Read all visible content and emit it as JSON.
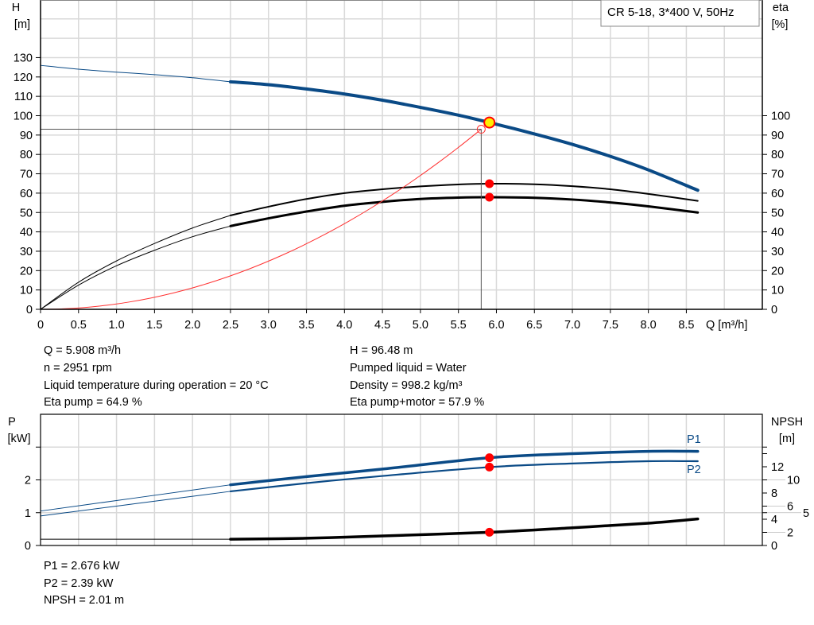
{
  "title_box": "CR 5-18, 3*400 V, 50Hz",
  "colors": {
    "head": "#0a4a86",
    "eta": "#000000",
    "system": "#ff3030",
    "duty_point": "#ffee00",
    "marker": "#ff0000",
    "grid": "#d9d9d9"
  },
  "chart_data": [
    {
      "type": "line",
      "xlabel": "Q [m³/h]",
      "ylabel_left": [
        "H",
        "[m]"
      ],
      "ylabel_right": [
        "eta",
        "[%]"
      ],
      "xlim": [
        0,
        9.5
      ],
      "ylim_left": [
        0,
        160
      ],
      "ylim_right": [
        0,
        160
      ],
      "x_ticks": [
        "0",
        "0.5",
        "1.0",
        "1.5",
        "2.0",
        "2.5",
        "3.0",
        "3.5",
        "4.0",
        "4.5",
        "5.0",
        "5.5",
        "6.0",
        "6.5",
        "7.0",
        "7.5",
        "8.0",
        "8.5"
      ],
      "y_ticks_left": [
        0,
        10,
        20,
        30,
        40,
        50,
        60,
        70,
        80,
        90,
        100,
        110,
        120,
        130
      ],
      "y_ticks_right": [
        0,
        10,
        20,
        30,
        40,
        50,
        60,
        70,
        80,
        90,
        100
      ],
      "grid": true,
      "series": [
        {
          "key": "head",
          "axis": "left",
          "thin_until": 2.5,
          "x": [
            0,
            0.5,
            1,
            1.5,
            2,
            2.5,
            3,
            3.5,
            4,
            4.5,
            5,
            5.5,
            5.908,
            6.5,
            7,
            7.5,
            8,
            8.65
          ],
          "y": [
            126,
            124,
            122.5,
            121.2,
            119.6,
            117.5,
            116,
            113.8,
            111.2,
            108,
            104.3,
            100.3,
            96.48,
            90.6,
            85.2,
            79,
            72,
            61.5
          ]
        },
        {
          "key": "eta_pump",
          "axis": "right",
          "thin_until": 2.5,
          "width": 2,
          "x": [
            0,
            0.5,
            1,
            1.5,
            2,
            2.5,
            3,
            3.5,
            4,
            4.5,
            5,
            5.5,
            5.908,
            6.5,
            7,
            7.5,
            8,
            8.65
          ],
          "y": [
            0,
            14,
            25,
            34,
            42,
            48.5,
            53,
            57,
            60,
            62,
            63.5,
            64.5,
            64.9,
            64.6,
            63.6,
            62,
            59.6,
            56
          ]
        },
        {
          "key": "eta_pump_motor",
          "axis": "right",
          "thin_until": 2.5,
          "width": 3,
          "x": [
            0,
            0.5,
            1,
            1.5,
            2,
            2.5,
            3,
            3.5,
            4,
            4.5,
            5,
            5.5,
            5.908,
            6.5,
            7,
            7.5,
            8,
            8.65
          ],
          "y": [
            0,
            12.5,
            22.5,
            30.5,
            37.5,
            43,
            47,
            50.5,
            53.5,
            55.5,
            57,
            57.7,
            57.9,
            57.6,
            56.7,
            55.2,
            53.2,
            50
          ]
        },
        {
          "key": "system",
          "axis": "left",
          "type": "quadratic",
          "x_end": 5.8,
          "y_end": 93
        }
      ],
      "duty_point": {
        "Q": 5.908,
        "H": 96.48,
        "eta_pump": 64.9,
        "eta_pump_motor": 57.9
      },
      "system_point": {
        "Q": 5.8,
        "H": 93
      }
    },
    {
      "type": "line",
      "ylabel_left": [
        "P",
        "[kW]"
      ],
      "ylabel_right": [
        "NPSH",
        "[m]"
      ],
      "xlim": [
        0,
        9.5
      ],
      "ylim_left": [
        0,
        4
      ],
      "ylim_right": [
        0,
        20
      ],
      "y_ticks_left": [
        "0",
        "1",
        "2"
      ],
      "y_ticks_right": [
        "0",
        "2",
        "4",
        "5",
        "6",
        "8",
        "10",
        "12"
      ],
      "grid": true,
      "series": [
        {
          "key": "P1",
          "name": "P1",
          "axis": "left",
          "thin_until": 2.5,
          "width": 3.5,
          "x": [
            0,
            2.5,
            3.5,
            4.5,
            5.908,
            7,
            8,
            8.65
          ],
          "y": [
            1.05,
            1.85,
            2.1,
            2.33,
            2.676,
            2.8,
            2.87,
            2.87
          ]
        },
        {
          "key": "P2",
          "name": "P2",
          "axis": "left",
          "thin_until": 2.5,
          "width": 2.2,
          "x": [
            0,
            2.5,
            3.5,
            4.5,
            5.908,
            7,
            8,
            8.65
          ],
          "y": [
            0.9,
            1.65,
            1.9,
            2.12,
            2.39,
            2.5,
            2.57,
            2.57
          ]
        },
        {
          "key": "NPSH",
          "axis": "right",
          "thin_until": 2.5,
          "width": 3.5,
          "x": [
            0,
            2.5,
            3.5,
            4.5,
            5.908,
            7,
            8,
            8.65
          ],
          "y": [
            0.95,
            0.95,
            1.1,
            1.45,
            2.01,
            2.7,
            3.4,
            4.05
          ]
        }
      ],
      "duty_point": {
        "P1": 2.676,
        "P2": 2.39,
        "NPSH": 2.01
      }
    }
  ],
  "info": {
    "left": [
      "Q = 5.908 m³/h",
      "n = 2951 rpm",
      "Liquid temperature during operation = 20 °C",
      "Eta pump = 64.9 %"
    ],
    "right": [
      "H = 96.48 m",
      "Pumped liquid = Water",
      "Density = 998.2 kg/m³",
      "Eta pump+motor = 57.9 %"
    ],
    "bottom": [
      "P1 = 2.676 kW",
      "P2 = 2.39 kW",
      "NPSH = 2.01 m"
    ]
  }
}
